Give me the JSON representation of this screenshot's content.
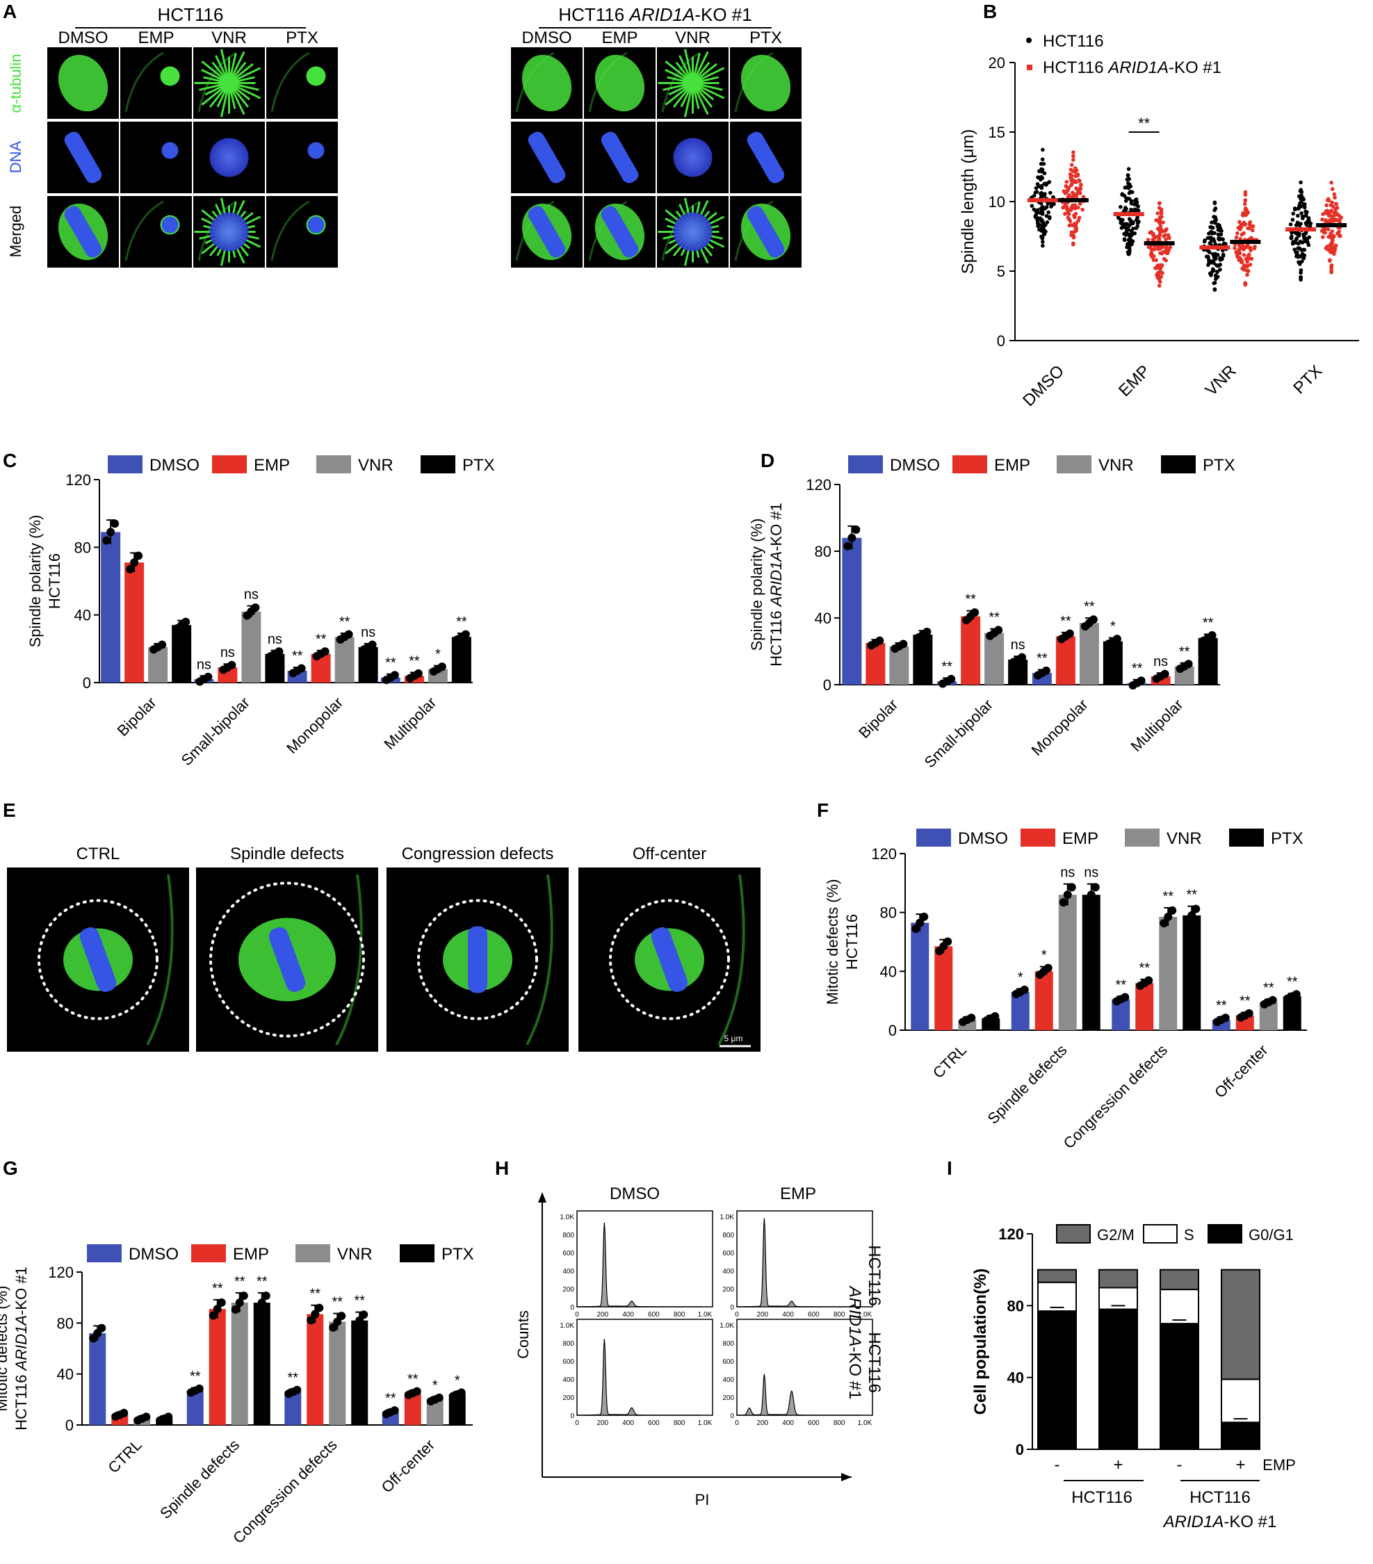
{
  "colors": {
    "dmso": "#3f51b5",
    "emp": "#e53027",
    "vnr": "#8c8c8c",
    "ptx": "#000000",
    "tubulin": "#46e13c",
    "dna": "#3654e6",
    "ko_red": "#e53027"
  },
  "panel_letters": [
    "A",
    "B",
    "C",
    "D",
    "E",
    "F",
    "G",
    "H",
    "I"
  ],
  "panelA": {
    "groups": [
      "HCT116",
      "HCT116 ARID1A-KO #1"
    ],
    "group_plain": "HCT116 ",
    "group_italic": "ARID1A",
    "group_suffix": "-KO #1",
    "treatments": [
      "DMSO",
      "EMP",
      "VNR",
      "PTX"
    ],
    "rows": [
      "α-tubulin",
      "DNA",
      "Merged"
    ],
    "scale": "5 μm"
  },
  "legend4": [
    "DMSO",
    "EMP",
    "VNR",
    "PTX"
  ],
  "chart_data": [
    {
      "panel": "B",
      "type": "scatter",
      "ylabel": "Spindle length (μm)",
      "ylim": [
        0,
        20
      ],
      "yticks": [
        0,
        5,
        10,
        15,
        20
      ],
      "categories": [
        "DMSO",
        "EMP",
        "VNR",
        "PTX"
      ],
      "series": [
        {
          "name": "HCT116",
          "medians": [
            10.1,
            9.1,
            6.7,
            8.0
          ]
        },
        {
          "name": "HCT116 ARID1A-KO #1",
          "medians": [
            10.1,
            7.0,
            7.1,
            8.3
          ]
        }
      ],
      "annotations": [
        {
          "between": "EMP",
          "text": "**"
        }
      ]
    },
    {
      "panel": "C",
      "type": "bar",
      "ylabel": [
        "Spindle polarity (%)",
        "HCT116"
      ],
      "ylim": [
        0,
        120
      ],
      "yticks": [
        0,
        40,
        80,
        120
      ],
      "categories": [
        "Bipolar",
        "Small-bipolar",
        "Monopolar",
        "Multipolar"
      ],
      "series": [
        {
          "name": "DMSO",
          "values": [
            89,
            2,
            7,
            3
          ]
        },
        {
          "name": "EMP",
          "values": [
            71,
            9,
            17,
            4
          ]
        },
        {
          "name": "VNR",
          "values": [
            21,
            42,
            27,
            8
          ]
        },
        {
          "name": "PTX",
          "values": [
            34,
            17,
            21,
            27
          ]
        }
      ],
      "sig": [
        [
          "",
          "ns",
          "**",
          "**"
        ],
        [
          "",
          "ns",
          "**",
          "**"
        ],
        [
          "",
          "ns",
          "**",
          "*"
        ],
        [
          "",
          "ns",
          "ns",
          "**"
        ]
      ]
    },
    {
      "panel": "D",
      "type": "bar",
      "ylabel": [
        "Spindle polarity (%)",
        "HCT116 ARID1A-KO #1"
      ],
      "ylim": [
        0,
        120
      ],
      "yticks": [
        0,
        40,
        80,
        120
      ],
      "categories": [
        "Bipolar",
        "Small-bipolar",
        "Monopolar",
        "Multipolar"
      ],
      "series": [
        {
          "name": "DMSO",
          "values": [
            88,
            2,
            7,
            1
          ]
        },
        {
          "name": "EMP",
          "values": [
            25,
            41,
            29,
            5
          ]
        },
        {
          "name": "VNR",
          "values": [
            23,
            31,
            37,
            11
          ]
        },
        {
          "name": "PTX",
          "values": [
            30,
            15,
            26,
            28
          ]
        }
      ],
      "sig": [
        [
          "",
          "**",
          "**",
          "**"
        ],
        [
          "",
          "**",
          "**",
          "ns"
        ],
        [
          "",
          "**",
          "**",
          "**"
        ],
        [
          "",
          "ns",
          "*",
          "**"
        ]
      ]
    },
    {
      "panel": "F",
      "type": "bar",
      "ylabel": [
        "Mitotic defects (%)",
        "HCT116"
      ],
      "ylim": [
        0,
        120
      ],
      "yticks": [
        0,
        40,
        80,
        120
      ],
      "categories": [
        "CTRL",
        "Spindle defects",
        "Congression defects",
        "Off-center"
      ],
      "series": [
        {
          "name": "DMSO",
          "values": [
            73,
            26,
            21,
            7
          ]
        },
        {
          "name": "EMP",
          "values": [
            57,
            40,
            32,
            10
          ]
        },
        {
          "name": "VNR",
          "values": [
            7,
            92,
            77,
            19
          ]
        },
        {
          "name": "PTX",
          "values": [
            8,
            92,
            78,
            23
          ]
        }
      ],
      "sig": [
        [
          "",
          "*",
          "**",
          "**"
        ],
        [
          "",
          "*",
          "**",
          "**"
        ],
        [
          "",
          "ns",
          "**",
          "**"
        ],
        [
          "",
          "ns",
          "**",
          "**"
        ]
      ]
    },
    {
      "panel": "G",
      "type": "bar",
      "ylabel": [
        "Mitotic defects (%)",
        "HCT116 ARID1A-KO #1"
      ],
      "ylim": [
        0,
        120
      ],
      "yticks": [
        0,
        40,
        80,
        120
      ],
      "categories": [
        "CTRL",
        "Spindle defects",
        "Congression defects",
        "Off-center"
      ],
      "series": [
        {
          "name": "DMSO",
          "values": [
            72,
            27,
            26,
            10
          ]
        },
        {
          "name": "EMP",
          "values": [
            8,
            91,
            87,
            25
          ]
        },
        {
          "name": "VNR",
          "values": [
            5,
            96,
            81,
            20
          ]
        },
        {
          "name": "PTX",
          "values": [
            5,
            96,
            82,
            24
          ]
        }
      ],
      "sig": [
        [
          "",
          "**",
          "**",
          "**"
        ],
        [
          "",
          "**",
          "**",
          "**"
        ],
        [
          "",
          "**",
          "**",
          "*"
        ],
        [
          "",
          "**",
          "**",
          "*"
        ]
      ]
    },
    {
      "panel": "H",
      "type": "area",
      "xlabel": "PI",
      "ylabel": "Counts",
      "xticks": [
        "0",
        "200",
        "400",
        "600",
        "800",
        "1.0K"
      ],
      "yticks": [
        "0",
        "200",
        "400",
        "600",
        "800",
        "1.0K"
      ],
      "columns": [
        "DMSO",
        "EMP"
      ],
      "rows": [
        "HCT116",
        "HCT116 ARID1A-KO #1"
      ],
      "peaks": [
        {
          "g1": [
            220,
            950
          ],
          "g2": [
            440,
            60
          ]
        },
        {
          "g1": [
            220,
            1000
          ],
          "g2": [
            440,
            60
          ]
        },
        {
          "g1": [
            220,
            860
          ],
          "g2": [
            440,
            80
          ]
        },
        {
          "g1": [
            220,
            460
          ],
          "g2": [
            440,
            270
          ],
          "sub": [
            100,
            80
          ]
        }
      ]
    },
    {
      "panel": "I",
      "type": "bar",
      "stacked": true,
      "ylabel": "Cell population(%)",
      "ylim": [
        0,
        120
      ],
      "yticks": [
        0,
        40,
        80,
        120
      ],
      "series": [
        {
          "name": "G0/G1",
          "values": [
            77,
            78,
            70,
            15
          ]
        },
        {
          "name": "S",
          "values": [
            16,
            12,
            19,
            24
          ]
        },
        {
          "name": "G2/M",
          "values": [
            7,
            10,
            11,
            61
          ]
        }
      ],
      "x_signs": [
        "-",
        "+",
        "-",
        "+"
      ],
      "x_label": "EMP",
      "groups": [
        "HCT116",
        "HCT116 ARID1A-KO #1"
      ]
    }
  ],
  "panelE": {
    "labels": [
      "CTRL",
      "Spindle defects",
      "Congression defects",
      "Off-center"
    ],
    "scale": "5 μm"
  }
}
